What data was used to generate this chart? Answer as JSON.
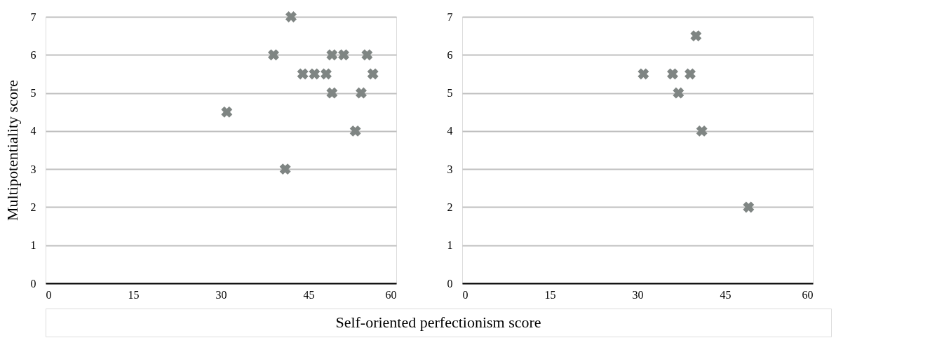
{
  "chart_data": [
    {
      "type": "scatter",
      "xlabel": "Self-oriented perfectionism score",
      "ylabel": "Multipotentiality score",
      "marker": "cross",
      "grid": "y",
      "series": [
        {
          "color": "#7f8583",
          "x": [
            42,
            39,
            49,
            51,
            55,
            44,
            46,
            48,
            56,
            49,
            54,
            31,
            53,
            41
          ],
          "values": [
            7,
            6,
            6,
            6,
            6,
            5.5,
            5.5,
            5.5,
            5.5,
            5,
            5,
            4.5,
            4,
            3
          ]
        }
      ],
      "xlim": [
        0,
        60
      ],
      "xticks": [
        0,
        15,
        30,
        45,
        60
      ],
      "ylim": [
        0,
        7
      ],
      "yticks": [
        0,
        1,
        2,
        3,
        4,
        5,
        6,
        7
      ]
    },
    {
      "type": "scatter",
      "marker": "cross",
      "grid": "y",
      "series": [
        {
          "color": "#7f8583",
          "x": [
            40,
            31,
            36,
            39,
            37,
            41,
            49
          ],
          "values": [
            6.5,
            5.5,
            5.5,
            5.5,
            5,
            4,
            2
          ]
        }
      ],
      "xlim": [
        0,
        60
      ],
      "xticks": [
        0,
        15,
        30,
        45,
        60
      ],
      "ylim": [
        0,
        7
      ],
      "yticks": [
        0,
        1,
        2,
        3,
        4,
        5,
        6,
        7
      ]
    }
  ]
}
